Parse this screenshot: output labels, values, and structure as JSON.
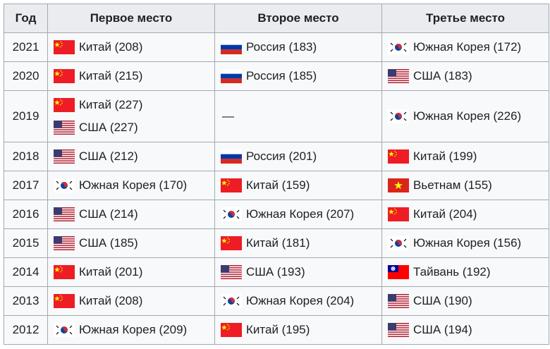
{
  "headers": [
    "Год",
    "Первое место",
    "Второе место",
    "Третье место"
  ],
  "rows": [
    {
      "year": "2021",
      "cols": [
        [
          {
            "flag": "china",
            "text": "Китай (208)"
          }
        ],
        [
          {
            "flag": "russia",
            "text": "Россия (183)"
          }
        ],
        [
          {
            "flag": "south-korea",
            "text": "Южная Корея (172)"
          }
        ]
      ]
    },
    {
      "year": "2020",
      "cols": [
        [
          {
            "flag": "china",
            "text": "Китай (215)"
          }
        ],
        [
          {
            "flag": "russia",
            "text": "Россия (185)"
          }
        ],
        [
          {
            "flag": "usa",
            "text": "США (183)"
          }
        ]
      ]
    },
    {
      "year": "2019",
      "cols": [
        [
          {
            "flag": "china",
            "text": "Китай (227)"
          },
          {
            "flag": "usa",
            "text": "США (227)"
          }
        ],
        [
          {
            "flag": "",
            "text": "—"
          }
        ],
        [
          {
            "flag": "south-korea",
            "text": "Южная Корея (226)"
          }
        ]
      ]
    },
    {
      "year": "2018",
      "cols": [
        [
          {
            "flag": "usa",
            "text": "США (212)"
          }
        ],
        [
          {
            "flag": "russia",
            "text": "Россия (201)"
          }
        ],
        [
          {
            "flag": "china",
            "text": "Китай (199)"
          }
        ]
      ]
    },
    {
      "year": "2017",
      "cols": [
        [
          {
            "flag": "south-korea",
            "text": "Южная Корея (170)"
          }
        ],
        [
          {
            "flag": "china",
            "text": "Китай (159)"
          }
        ],
        [
          {
            "flag": "vietnam",
            "text": "Вьетнам (155)"
          }
        ]
      ]
    },
    {
      "year": "2016",
      "cols": [
        [
          {
            "flag": "usa",
            "text": "США (214)"
          }
        ],
        [
          {
            "flag": "south-korea",
            "text": "Южная Корея (207)"
          }
        ],
        [
          {
            "flag": "china",
            "text": "Китай (204)"
          }
        ]
      ]
    },
    {
      "year": "2015",
      "cols": [
        [
          {
            "flag": "usa",
            "text": "США (185)"
          }
        ],
        [
          {
            "flag": "china",
            "text": "Китай (181)"
          }
        ],
        [
          {
            "flag": "south-korea",
            "text": "Южная Корея (156)"
          }
        ]
      ]
    },
    {
      "year": "2014",
      "cols": [
        [
          {
            "flag": "china",
            "text": "Китай (201)"
          }
        ],
        [
          {
            "flag": "usa",
            "text": "США (193)"
          }
        ],
        [
          {
            "flag": "taiwan",
            "text": "Тайвань (192)"
          }
        ]
      ]
    },
    {
      "year": "2013",
      "cols": [
        [
          {
            "flag": "china",
            "text": "Китай (208)"
          }
        ],
        [
          {
            "flag": "south-korea",
            "text": "Южная Корея (204)"
          }
        ],
        [
          {
            "flag": "usa",
            "text": "США (190)"
          }
        ]
      ]
    },
    {
      "year": "2012",
      "cols": [
        [
          {
            "flag": "south-korea",
            "text": "Южная Корея (209)"
          }
        ],
        [
          {
            "flag": "china",
            "text": "Китай (195)"
          }
        ],
        [
          {
            "flag": "usa",
            "text": "США (194)"
          }
        ]
      ]
    }
  ]
}
